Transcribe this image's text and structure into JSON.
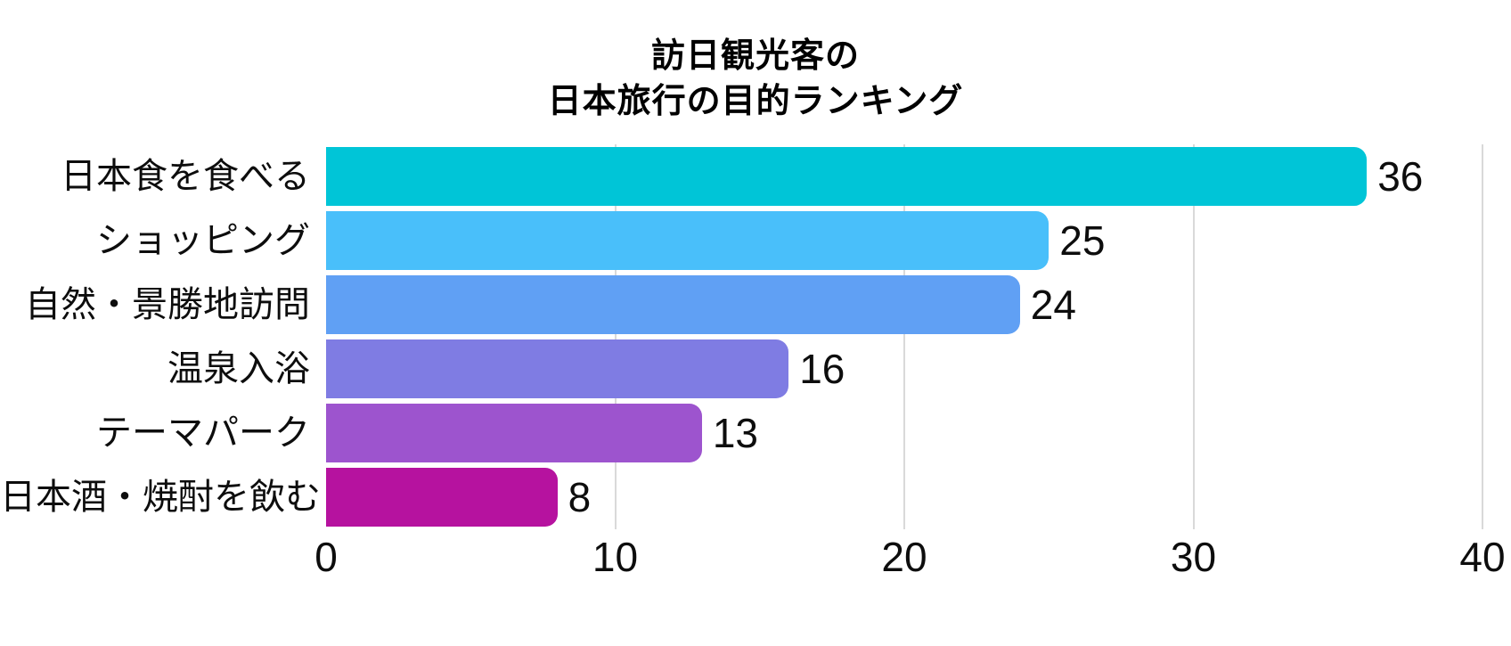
{
  "chart_data": {
    "type": "bar",
    "orientation": "horizontal",
    "title": "訪日観光客の 日本旅行の目的ランキング",
    "title_lines": [
      "訪日観光客の",
      "日本旅行の目的ランキング"
    ],
    "categories": [
      "日本食を食べる",
      "ショッピング",
      "自然・景勝地訪問",
      "温泉入浴",
      "テーマパーク",
      "日本酒・焼酎を飲む"
    ],
    "values": [
      36,
      25,
      24,
      16,
      13,
      8
    ],
    "value_labels": [
      "36",
      "25",
      "24",
      "16",
      "13",
      "8"
    ],
    "bar_colors": [
      "#00C5D7",
      "#49BFFA",
      "#60A0F4",
      "#7F7CE3",
      "#9D54CE",
      "#B6129F"
    ],
    "xlabel": "",
    "ylabel": "",
    "xlim": [
      0,
      40
    ],
    "x_ticks": [
      0,
      10,
      20,
      30,
      40
    ],
    "x_tick_labels": [
      "0",
      "10",
      "20",
      "30",
      "40"
    ],
    "grid": {
      "vertical": true,
      "horizontal": false,
      "color": "#D9D9D9"
    },
    "legend": "none",
    "value_labels_shown": true,
    "text_color": "#0D0D0D",
    "background": "#FFFFFF"
  }
}
